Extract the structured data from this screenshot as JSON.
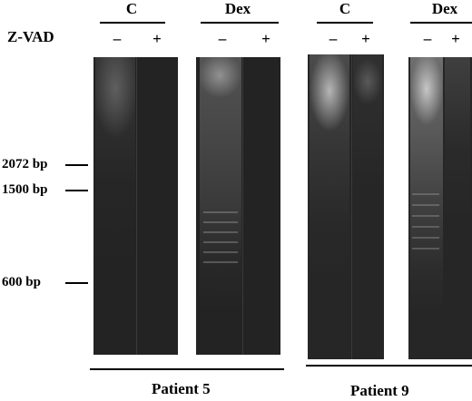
{
  "header": {
    "treatment_label": "Z-VAD",
    "groups": [
      {
        "condition": "C",
        "minus": "–",
        "plus": "+"
      },
      {
        "condition": "Dex",
        "minus": "–",
        "plus": "+"
      },
      {
        "condition": "C",
        "minus": "–",
        "plus": "+"
      },
      {
        "condition": "Dex",
        "minus": "–",
        "plus": "+"
      }
    ]
  },
  "markers": [
    {
      "label": "2072 bp"
    },
    {
      "label": "1500 bp"
    },
    {
      "label": "600 bp"
    }
  ],
  "patients": [
    {
      "label": "Patient 5"
    },
    {
      "label": "Patient 9"
    }
  ],
  "colors": {
    "gel_background": "#232323",
    "band": "#d8d8d8"
  }
}
